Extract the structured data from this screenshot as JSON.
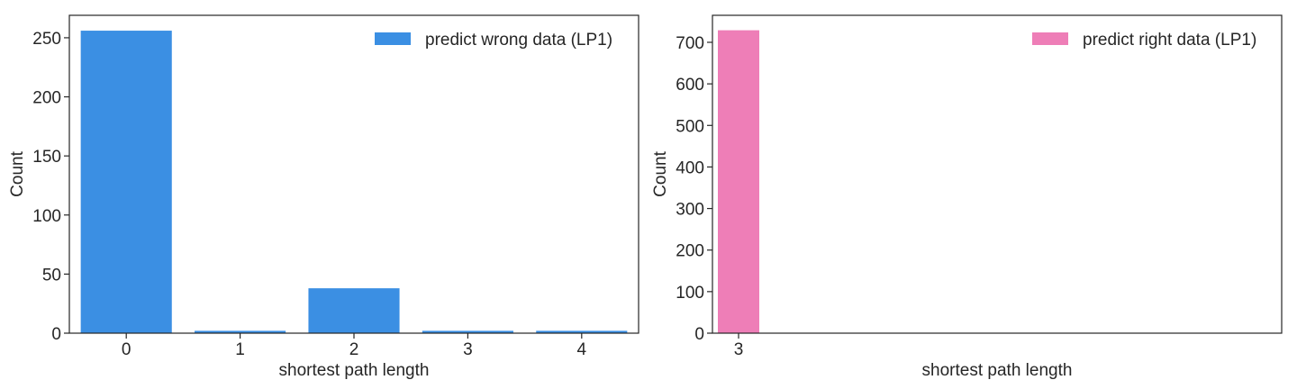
{
  "chart_data": [
    {
      "type": "bar",
      "categories": [
        "0",
        "1",
        "2",
        "3",
        "4"
      ],
      "series": [
        {
          "name": "predict wrong data (LP1)",
          "values": [
            256,
            2,
            38,
            2,
            2
          ],
          "color": "#3b8fe3"
        }
      ],
      "xlabel": "shortest path length",
      "ylabel": "Count",
      "ylim": [
        0,
        269
      ],
      "yticks": [
        0,
        50,
        100,
        150,
        200,
        250
      ],
      "grid": false,
      "legend": "top-right"
    },
    {
      "type": "bar",
      "categories": [
        "3"
      ],
      "series": [
        {
          "name": "predict right data (LP1)",
          "values": [
            729
          ],
          "color": "#ee7eb7"
        }
      ],
      "xlabel": "shortest path length",
      "ylabel": "Count",
      "ylim": [
        0,
        765
      ],
      "yticks": [
        0,
        100,
        200,
        300,
        400,
        500,
        600,
        700
      ],
      "grid": false,
      "legend": "top-right"
    }
  ]
}
